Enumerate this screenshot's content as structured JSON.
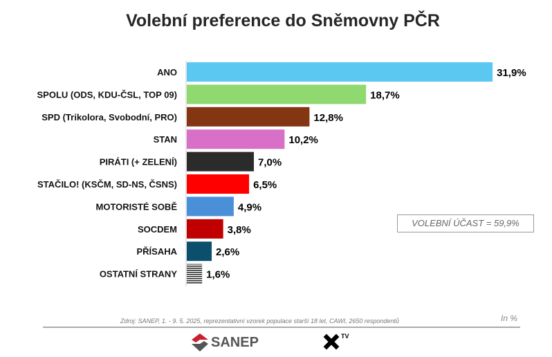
{
  "chart_data": {
    "type": "bar",
    "orientation": "horizontal",
    "title": "Volební preference do Sněmovny PČR",
    "categories": [
      "ANO",
      "SPOLU (ODS, KDU-ČSL, TOP 09)",
      "SPD (Trikolora, Svobodní, PRO)",
      "STAN",
      "PIRÁTI (+ ZELENÍ)",
      "STAČILO! (KSČM, SD-NS, ČSNS)",
      "MOTORISTÉ SOBĚ",
      "SOCDEM",
      "PŘÍSAHA",
      "OSTATNÍ STRANY"
    ],
    "values": [
      31.9,
      18.7,
      12.8,
      10.2,
      7.0,
      6.5,
      4.9,
      3.8,
      2.6,
      1.6
    ],
    "value_labels": [
      "31,9%",
      "18,7%",
      "12,8%",
      "10,2%",
      "7,0%",
      "6,5%",
      "4,9%",
      "3,8%",
      "2,6%",
      "1,6%"
    ],
    "colors": [
      "#5bc8f2",
      "#8fd970",
      "#843512",
      "#d870c8",
      "#2b2b2b",
      "#ff0000",
      "#4a90d9",
      "#c00000",
      "#0b4f6c",
      "hatched"
    ],
    "unit": "In %",
    "annotation": "VOLEBNÍ ÚČAST = 59,9%",
    "source": "Zdroj: SANEP, 1. - 9. 5. 2025, reprezentativní vzorek populace starší 18 let, CAWI, 2650 respondentů"
  },
  "logos": {
    "sanep": "SANEP",
    "xtv": "TV"
  }
}
